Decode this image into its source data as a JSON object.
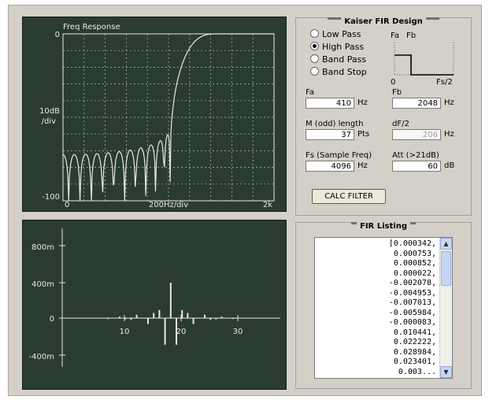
{
  "design": {
    "title": "Kaiser FIR Design",
    "filter_types": [
      {
        "label": "Low Pass",
        "selected": false
      },
      {
        "label": "High Pass",
        "selected": true
      },
      {
        "label": "Band Pass",
        "selected": false
      },
      {
        "label": "Band Stop",
        "selected": false
      }
    ],
    "mini_plot": {
      "fa_label": "Fa",
      "fb_label": "Fb",
      "zero_label": "0",
      "end_label": "Fs/2"
    },
    "fa": {
      "label": "Fa",
      "value": "410",
      "unit": "Hz"
    },
    "fb": {
      "label": "Fb",
      "value": "2048",
      "unit": "Hz"
    },
    "m_length": {
      "label": "M (odd) length",
      "value": "37",
      "unit": "Pts"
    },
    "df2": {
      "label": "dF/2",
      "value": "206",
      "unit": "Hz"
    },
    "fs": {
      "label": "Fs (Sample Freq)",
      "value": "4096",
      "unit": "Hz"
    },
    "att": {
      "label": "Att (>21dB)",
      "value": "60",
      "unit": "dB"
    },
    "calc_button": "CALC FILTER"
  },
  "freq_plot": {
    "title": "Freq Response",
    "y_top_label": "0",
    "y_mid_label": "10dB",
    "y_mid_sub": "/div",
    "y_bottom_label": "-100",
    "x_start_label": "0",
    "x_mid_label": "200Hz/div",
    "x_end_label": "2k"
  },
  "impulse_plot": {
    "y_labels": [
      "800m",
      "400m",
      "0",
      "-400m"
    ],
    "x_labels": [
      "10",
      "20",
      "30"
    ]
  },
  "listing": {
    "title": "FIR Listing",
    "lines": [
      "[0.000342,",
      "0.000753,",
      "0.000852,",
      "0.000022,",
      "-0.002078,",
      "-0.004953,",
      "-0.007013,",
      "-0.005984,",
      "-0.000083,",
      "0.010441,",
      "0.022222,",
      "0.028984,",
      "0.023401,",
      "0.003..."
    ],
    "scroll_up_icon": "up-arrow-icon",
    "scroll_down_icon": "down-arrow-icon"
  },
  "colors": {
    "plot_bg": "#2a3b30",
    "trace": "#e8e8e8",
    "panel_bg": "#d4d0c8"
  }
}
